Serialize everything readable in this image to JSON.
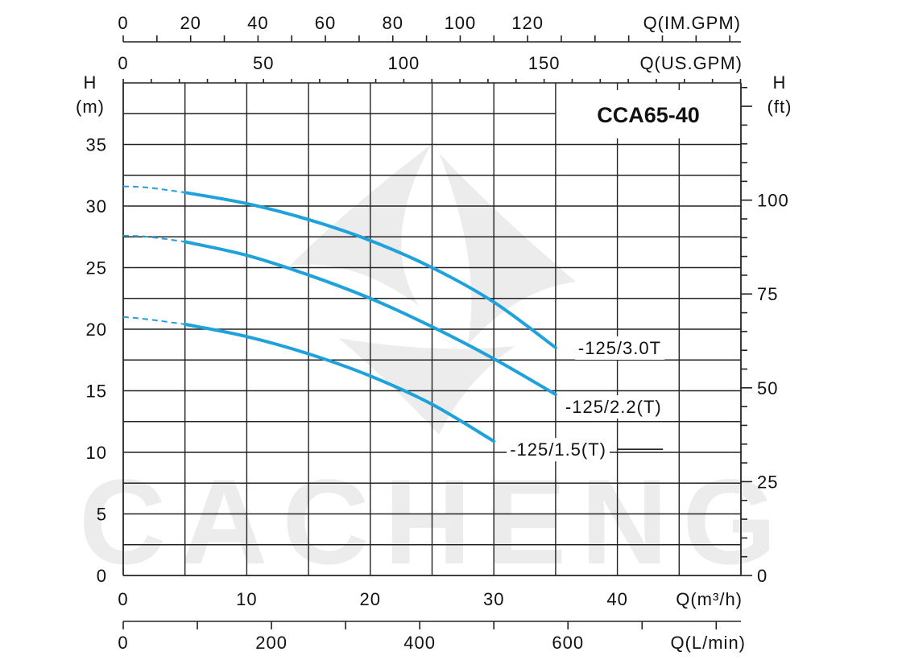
{
  "chart_data": {
    "type": "line",
    "title": "CCA65-40",
    "watermark": "CACHENG",
    "curve_color": "#1fa2dc",
    "x_main": {
      "label": "Q(m³/h)",
      "ticks": [
        0,
        10,
        20,
        30,
        40
      ],
      "range": [
        0,
        50
      ]
    },
    "x_lmin": {
      "label": "Q(L/min)",
      "ticks": [
        0,
        200,
        400,
        600
      ]
    },
    "x_usgpm": {
      "label": "Q(US.GPM)",
      "ticks": [
        0,
        50,
        100,
        150
      ]
    },
    "x_imgpm": {
      "label": "Q(IM.GPM)",
      "ticks": [
        0,
        20,
        40,
        60,
        80,
        100,
        120
      ]
    },
    "y_left": {
      "label_top": "H",
      "label_unit": "(m)",
      "ticks": [
        0,
        5,
        10,
        15,
        20,
        25,
        30,
        35
      ],
      "range": [
        0,
        40
      ]
    },
    "y_right": {
      "label_top": "H",
      "label_unit": "(ft)",
      "ticks": [
        0,
        25,
        50,
        75,
        100
      ]
    },
    "series": [
      {
        "name": "-125/3.0T",
        "dashed": [
          [
            0,
            31.6
          ],
          [
            2,
            31.5
          ],
          [
            5,
            31.1
          ]
        ],
        "solid": [
          [
            5,
            31.1
          ],
          [
            10,
            30.2
          ],
          [
            15,
            28.9
          ],
          [
            20,
            27.2
          ],
          [
            25,
            25.0
          ],
          [
            30,
            22.2
          ],
          [
            35,
            18.5
          ]
        ]
      },
      {
        "name": "-125/2.2(T)",
        "dashed": [
          [
            0,
            27.6
          ],
          [
            2,
            27.5
          ],
          [
            5,
            27.1
          ]
        ],
        "solid": [
          [
            5,
            27.1
          ],
          [
            10,
            26.0
          ],
          [
            15,
            24.4
          ],
          [
            20,
            22.5
          ],
          [
            25,
            20.2
          ],
          [
            30,
            17.6
          ],
          [
            35,
            14.7
          ]
        ]
      },
      {
        "name": "-125/1.5(T)",
        "dashed": [
          [
            0,
            21.0
          ],
          [
            2,
            20.8
          ],
          [
            5,
            20.4
          ]
        ],
        "solid": [
          [
            5,
            20.4
          ],
          [
            10,
            19.4
          ],
          [
            15,
            18.0
          ],
          [
            20,
            16.2
          ],
          [
            25,
            13.9
          ],
          [
            30,
            10.9
          ]
        ]
      }
    ]
  }
}
